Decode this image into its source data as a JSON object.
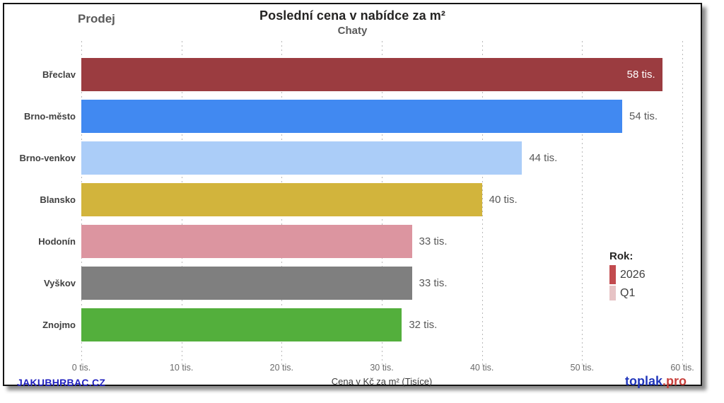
{
  "header": {
    "left_label": "Prodej"
  },
  "chart_data": {
    "type": "bar",
    "orientation": "horizontal",
    "title": "Poslední cena v nabídce za m²",
    "subtitle": "Chaty",
    "categories": [
      "Břeclav",
      "Brno-město",
      "Brno-venkov",
      "Blansko",
      "Hodonín",
      "Vyškov",
      "Znojmo"
    ],
    "values": [
      58,
      54,
      44,
      40,
      33,
      33,
      32
    ],
    "value_labels": [
      "58 tis.",
      "54 tis.",
      "44 tis.",
      "40 tis.",
      "33 tis.",
      "33 tis.",
      "32 tis."
    ],
    "bar_colors": [
      "#9B3C40",
      "#4189F1",
      "#ABCDF8",
      "#D2B43C",
      "#DC95A0",
      "#7F7F7F",
      "#53AF3C"
    ],
    "xlim": [
      0,
      60
    ],
    "x_ticks": [
      {
        "value": 0,
        "label": "0 tis."
      },
      {
        "value": 10,
        "label": "10 tis."
      },
      {
        "value": 20,
        "label": "20 tis."
      },
      {
        "value": 30,
        "label": "30 tis."
      },
      {
        "value": 40,
        "label": "40 tis."
      },
      {
        "value": 50,
        "label": "50 tis."
      },
      {
        "value": 60,
        "label": "60 tis."
      }
    ],
    "xlabel": "Cena v Kč za m² (Tisíce)",
    "grid": "vertical-dotted",
    "legend_position": "right"
  },
  "legend": {
    "title": "Rok:",
    "items": [
      {
        "label": "2026",
        "color": "#C24B4F"
      },
      {
        "label": "Q1",
        "color": "#E7C3C5"
      }
    ]
  },
  "colors": {
    "value_label_inside": "#FFFFFF",
    "value_label_outside": "#595959"
  },
  "footer": {
    "left_brand": "JAKUBHRBAC.CZ",
    "right_brand_primary": "toplak",
    "right_brand_secondary": ".pro"
  }
}
